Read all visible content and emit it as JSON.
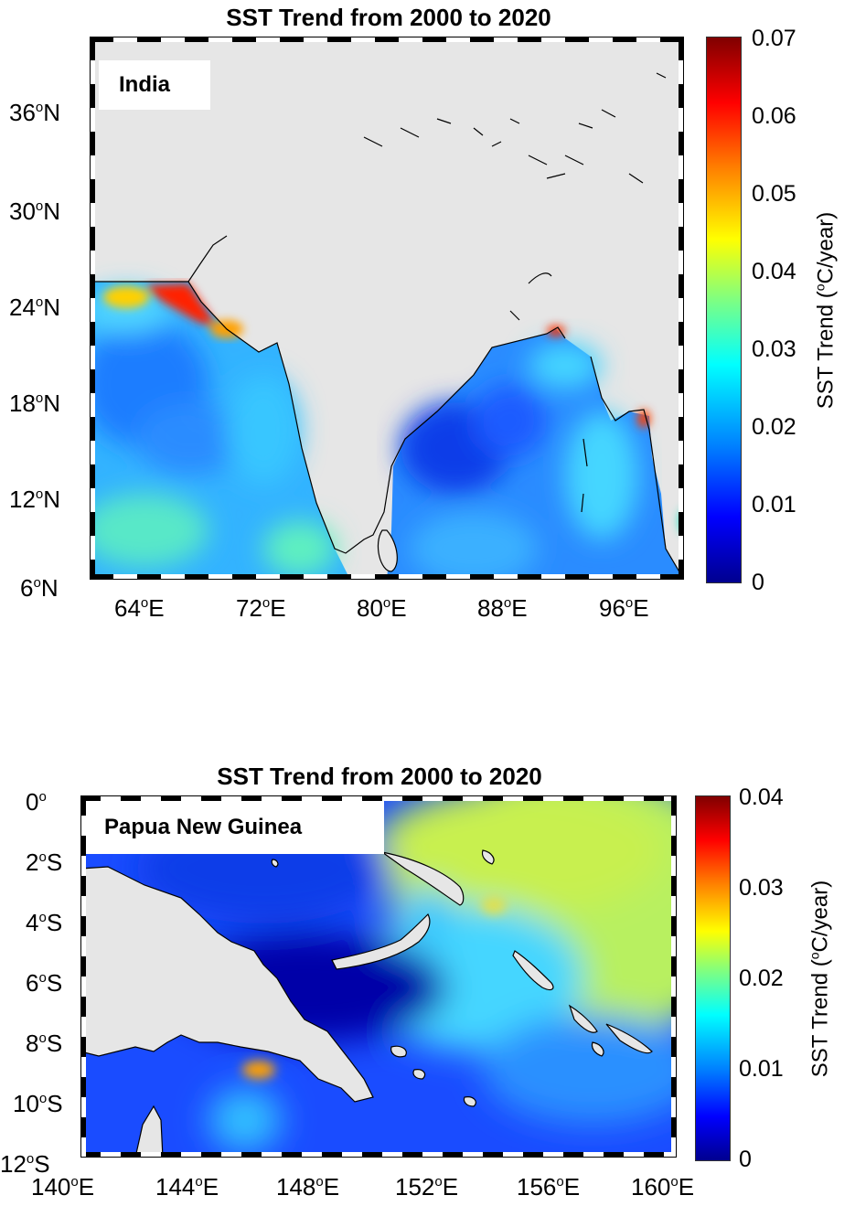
{
  "panels": [
    {
      "title": "SST Trend from 2000 to 2020",
      "region_label": "India",
      "lat_ticks": [
        "36",
        "30",
        "24",
        "18",
        "12",
        "6"
      ],
      "lat_suffix": "N",
      "lon_ticks": [
        "64",
        "72",
        "80",
        "88",
        "96"
      ],
      "lon_suffix": "E",
      "colorbar": {
        "label_pre": "SST Trend (",
        "label_sup": "o",
        "label_post": "C/year)",
        "ticks": [
          "0.07",
          "0.06",
          "0.05",
          "0.04",
          "0.03",
          "0.02",
          "0.01",
          "0"
        ]
      }
    },
    {
      "title": "SST Trend from 2000 to 2020",
      "region_label": "Papua New Guinea",
      "lat_ticks": [
        "0",
        "2",
        "4",
        "6",
        "8",
        "10",
        "12"
      ],
      "lat_suffixes": [
        "",
        "S",
        "S",
        "S",
        "S",
        "S",
        "S"
      ],
      "lon_ticks": [
        "140",
        "144",
        "148",
        "152",
        "156",
        "160"
      ],
      "lon_suffix": "E",
      "colorbar": {
        "label_pre": "SST Trend (",
        "label_sup": "o",
        "label_post": "C/year)",
        "ticks": [
          "0.04",
          "0.03",
          "0.02",
          "0.01",
          "0"
        ]
      }
    }
  ],
  "colors": {
    "land": "#e6e6e6",
    "colormap": [
      "#00008f",
      "#0000ff",
      "#0080ff",
      "#00ffff",
      "#80ff80",
      "#ffff00",
      "#ff8000",
      "#ff0000",
      "#800000"
    ]
  }
}
